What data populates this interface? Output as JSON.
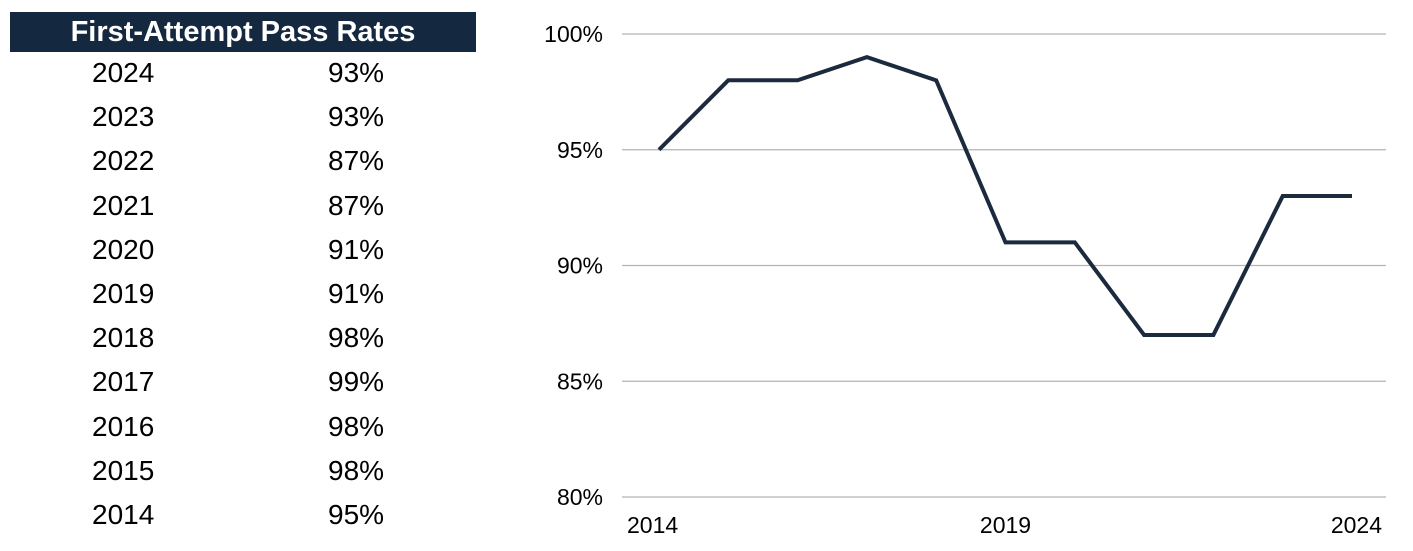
{
  "table": {
    "title": "First-Attempt Pass Rates",
    "rows": [
      {
        "year": "2024",
        "rate": "93%"
      },
      {
        "year": "2023",
        "rate": "93%"
      },
      {
        "year": "2022",
        "rate": "87%"
      },
      {
        "year": "2021",
        "rate": "87%"
      },
      {
        "year": "2020",
        "rate": "91%"
      },
      {
        "year": "2019",
        "rate": "91%"
      },
      {
        "year": "2018",
        "rate": "98%"
      },
      {
        "year": "2017",
        "rate": "99%"
      },
      {
        "year": "2016",
        "rate": "98%"
      },
      {
        "year": "2015",
        "rate": "98%"
      },
      {
        "year": "2014",
        "rate": "95%"
      }
    ]
  },
  "chart_data": {
    "type": "line",
    "x": [
      2014,
      2015,
      2016,
      2017,
      2018,
      2019,
      2020,
      2021,
      2022,
      2023,
      2024
    ],
    "series": [
      {
        "values": [
          95,
          98,
          98,
          99,
          98,
          91,
          91,
          87,
          87,
          93,
          93
        ]
      }
    ],
    "ylim": [
      80,
      100
    ],
    "yticks": [
      "80%",
      "85%",
      "90%",
      "95%",
      "100%"
    ],
    "ytick_values": [
      80,
      85,
      90,
      95,
      100
    ],
    "xticks": [
      "2014",
      "2019",
      "2024"
    ],
    "xtick_values": [
      2014,
      2019,
      2024
    ],
    "grid": "horizontal",
    "line_color": "#1b2a3d",
    "header_color": "#14283f"
  }
}
